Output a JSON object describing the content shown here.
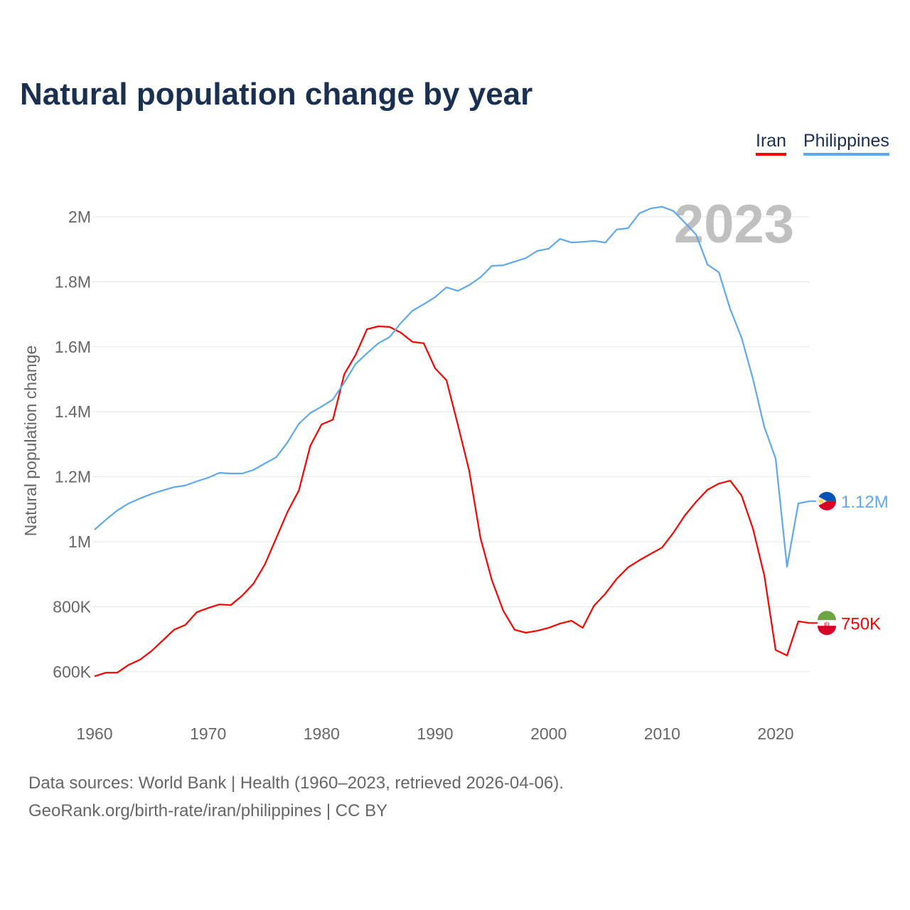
{
  "chart_data": {
    "type": "line",
    "title": "Natural population change by year",
    "ylabel": "Natural population change",
    "xlabel": "",
    "year_label": "2023",
    "xlim": [
      1960,
      2023
    ],
    "ylim": [
      500000,
      2100000
    ],
    "x_ticks": [
      1960,
      1970,
      1980,
      1990,
      2000,
      2010,
      2020
    ],
    "y_ticks": [
      600000,
      800000,
      1000000,
      1200000,
      1400000,
      1600000,
      1800000,
      2000000
    ],
    "y_tick_labels": [
      "600K",
      "800K",
      "1M",
      "1.2M",
      "1.4M",
      "1.6M",
      "1.8M",
      "2M"
    ],
    "grid": true,
    "legend_position": "top-right",
    "x": [
      1960,
      1961,
      1962,
      1963,
      1964,
      1965,
      1966,
      1967,
      1968,
      1969,
      1970,
      1971,
      1972,
      1973,
      1974,
      1975,
      1976,
      1977,
      1978,
      1979,
      1980,
      1981,
      1982,
      1983,
      1984,
      1985,
      1986,
      1987,
      1988,
      1989,
      1990,
      1991,
      1992,
      1993,
      1994,
      1995,
      1996,
      1997,
      1998,
      1999,
      2000,
      2001,
      2002,
      2003,
      2004,
      2005,
      2006,
      2007,
      2008,
      2009,
      2010,
      2011,
      2012,
      2013,
      2014,
      2015,
      2016,
      2017,
      2018,
      2019,
      2020,
      2021,
      2022,
      2023
    ],
    "series": [
      {
        "name": "Iran",
        "color": "#ff0000",
        "end_label": "750K",
        "values": [
          586000,
          597000,
          597000,
          621000,
          637000,
          663000,
          696000,
          729000,
          744000,
          783000,
          796000,
          807000,
          805000,
          834000,
          871000,
          930000,
          1011000,
          1092000,
          1158000,
          1295000,
          1361000,
          1376000,
          1516000,
          1575000,
          1654000,
          1663000,
          1661000,
          1643000,
          1615000,
          1611000,
          1534000,
          1497000,
          1361000,
          1219000,
          1011000,
          882000,
          788000,
          729000,
          720000,
          726000,
          735000,
          748000,
          757000,
          735000,
          803000,
          840000,
          886000,
          921000,
          943000,
          963000,
          982000,
          1028000,
          1081000,
          1123000,
          1160000,
          1179000,
          1188000,
          1142000,
          1040000,
          897000,
          667000,
          650000,
          755000,
          750000
        ]
      },
      {
        "name": "Philippines",
        "color": "#5fa8ec",
        "end_label": "1.12M",
        "values": [
          1037000,
          1068000,
          1096000,
          1118000,
          1133000,
          1147000,
          1158000,
          1168000,
          1173000,
          1186000,
          1197000,
          1212000,
          1210000,
          1210000,
          1221000,
          1241000,
          1260000,
          1306000,
          1363000,
          1396000,
          1416000,
          1438000,
          1490000,
          1547000,
          1580000,
          1611000,
          1630000,
          1674000,
          1711000,
          1731000,
          1753000,
          1783000,
          1772000,
          1790000,
          1814000,
          1849000,
          1851000,
          1862000,
          1873000,
          1895000,
          1902000,
          1932000,
          1921000,
          1923000,
          1926000,
          1921000,
          1961000,
          1965000,
          2011000,
          2026000,
          2031000,
          2018000,
          1982000,
          1945000,
          1853000,
          1829000,
          1716000,
          1628000,
          1501000,
          1354000,
          1256000,
          923000,
          1118000,
          1125000
        ]
      }
    ]
  },
  "footer": {
    "source": "Data sources: World Bank | Health (1960–2023, retrieved 2026-04-06).",
    "link": "GeoRank.org/birth-rate/iran/philippines | CC BY"
  }
}
